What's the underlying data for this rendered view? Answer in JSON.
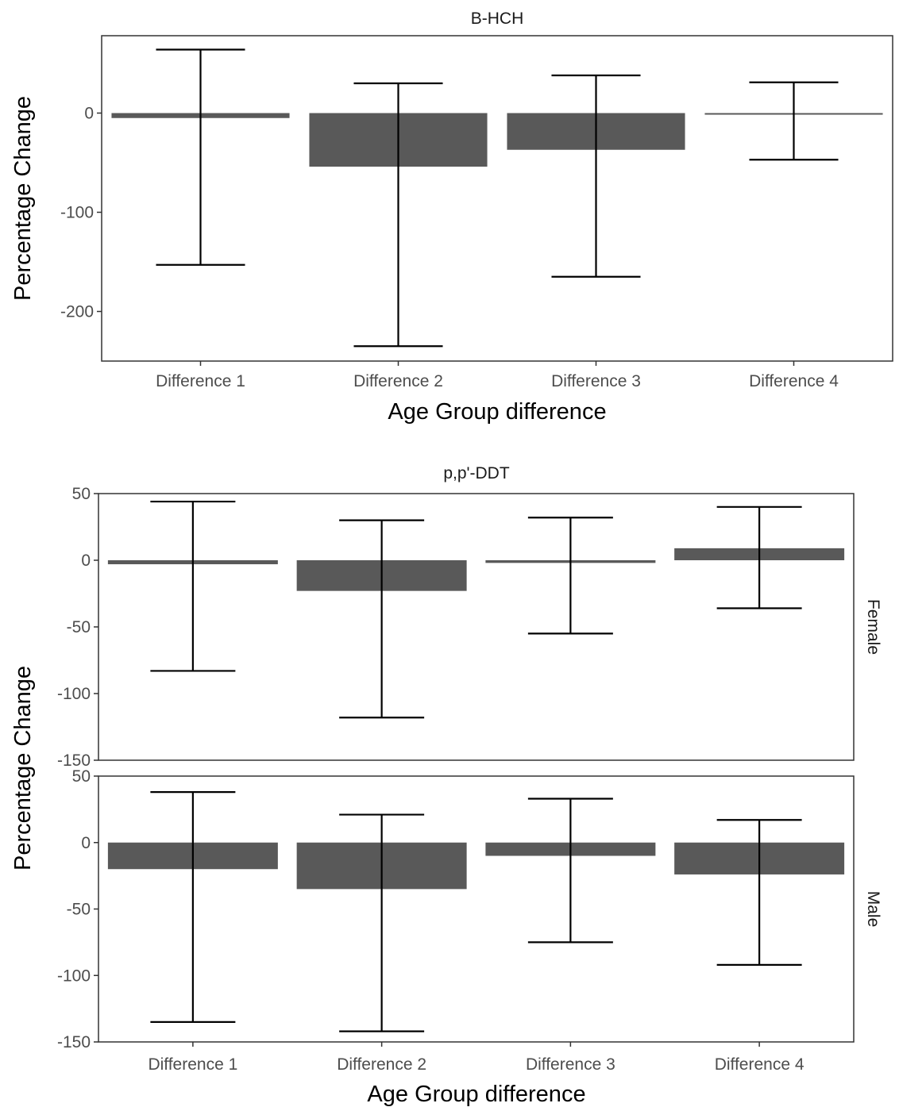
{
  "chart_data": [
    {
      "type": "bar",
      "title": "B-HCH",
      "xlabel": "Age Group difference",
      "ylabel": "Percentage Change",
      "categories": [
        "Difference 1",
        "Difference 2",
        "Difference 3",
        "Difference 4"
      ],
      "ylim": [
        -250,
        78
      ],
      "yticks": [
        0,
        -100,
        -200
      ],
      "panels": [
        {
          "strip": "",
          "values": [
            -5,
            -54,
            -37,
            -1
          ],
          "error_low": [
            -153,
            -235,
            -165,
            -47
          ],
          "error_high": [
            64,
            30,
            38,
            31
          ]
        }
      ]
    },
    {
      "type": "bar",
      "title": "p,p'-DDT",
      "xlabel": "Age Group difference",
      "ylabel": "Percentage Change",
      "categories": [
        "Difference 1",
        "Difference 2",
        "Difference 3",
        "Difference 4"
      ],
      "ylim": [
        -150,
        50
      ],
      "yticks": [
        50,
        0,
        -50,
        -100,
        -150
      ],
      "panels": [
        {
          "strip": "Female",
          "values": [
            -3,
            -23,
            -2,
            9
          ],
          "error_low": [
            -83,
            -118,
            -55,
            -36
          ],
          "error_high": [
            44,
            30,
            32,
            40
          ]
        },
        {
          "strip": "Male",
          "values": [
            -20,
            -35,
            -10,
            -24
          ],
          "error_low": [
            -135,
            -142,
            -75,
            -92
          ],
          "error_high": [
            38,
            21,
            33,
            17
          ]
        }
      ]
    }
  ],
  "colors": {
    "bar": "#595959",
    "error_bar": "#000000",
    "panel_border": "#333333",
    "tick_text": "#4d4d4d"
  }
}
